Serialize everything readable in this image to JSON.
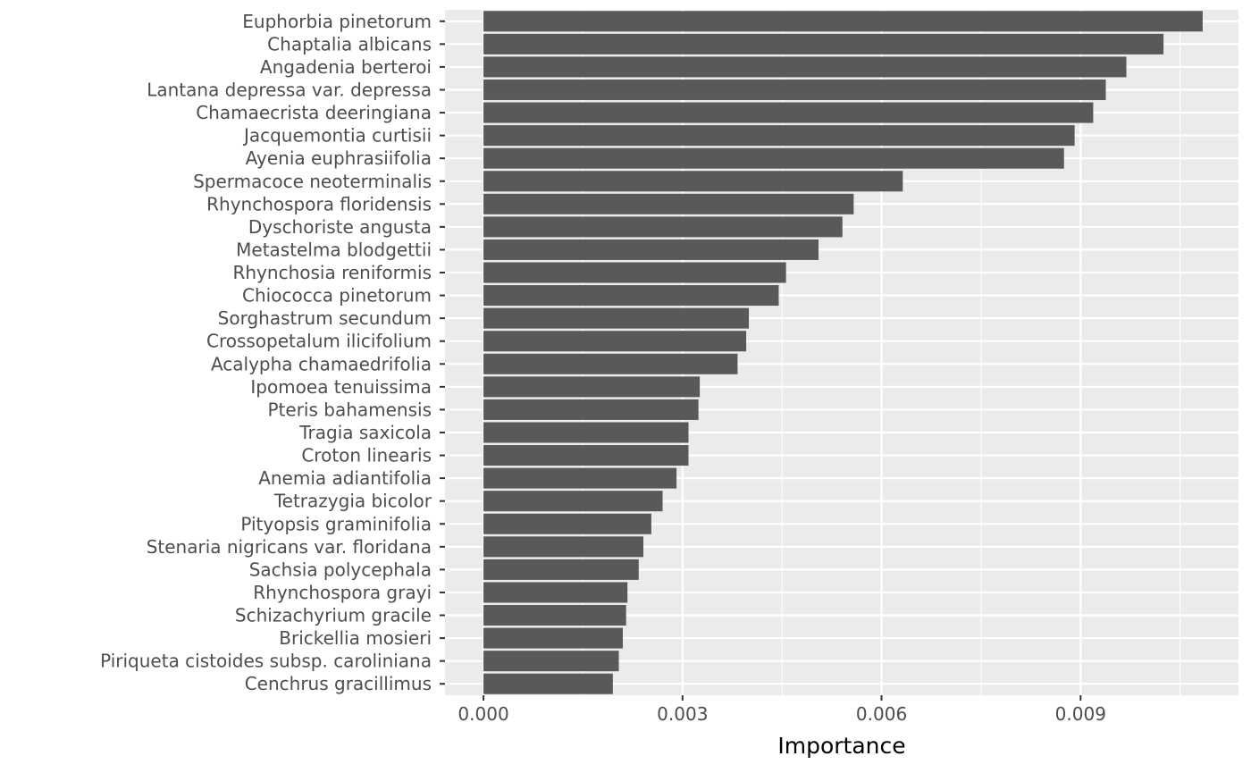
{
  "chart_data": {
    "type": "bar",
    "orientation": "horizontal",
    "title": "",
    "xlabel": "Importance",
    "ylabel": "",
    "xlim": [
      -0.00058,
      0.01138
    ],
    "x_ticks": [
      0,
      0.003,
      0.006,
      0.009
    ],
    "x_tick_labels": [
      "0.000",
      "0.003",
      "0.006",
      "0.009"
    ],
    "grid": true,
    "legend": "none",
    "colors": {
      "bar": "#595959",
      "panel": "#ebebeb",
      "grid": "#ffffff"
    },
    "categories": [
      "Euphorbia pinetorum",
      "Chaptalia albicans",
      "Angadenia berteroi",
      "Lantana depressa var. depressa",
      "Chamaecrista deeringiana",
      "Jacquemontia curtisii",
      "Ayenia euphrasiifolia",
      "Spermacoce neoterminalis",
      "Rhynchospora floridensis",
      "Dyschoriste angusta",
      "Metastelma blodgettii",
      "Rhynchosia reniformis",
      "Chiococca pinetorum",
      "Sorghastrum secundum",
      "Crossopetalum ilicifolium",
      "Acalypha chamaedrifolia",
      "Ipomoea tenuissima",
      "Pteris bahamensis",
      "Tragia saxicola",
      "Croton linearis",
      "Anemia adiantifolia",
      "Tetrazygia bicolor",
      "Pityopsis graminifolia",
      "Stenaria nigricans var. floridana",
      "Sachsia polycephala",
      "Rhynchospora grayi",
      "Schizachyrium gracile",
      "Brickellia mosieri",
      "Piriqueta cistoides subsp. caroliniana",
      "Cenchrus gracillimus"
    ],
    "values": [
      0.01084,
      0.01025,
      0.00969,
      0.00938,
      0.00919,
      0.00891,
      0.00875,
      0.00632,
      0.00558,
      0.00541,
      0.00505,
      0.00456,
      0.00445,
      0.004,
      0.00396,
      0.00383,
      0.00326,
      0.00324,
      0.00309,
      0.00309,
      0.00291,
      0.0027,
      0.00253,
      0.00241,
      0.00234,
      0.00217,
      0.00215,
      0.0021,
      0.00204,
      0.00195
    ]
  }
}
